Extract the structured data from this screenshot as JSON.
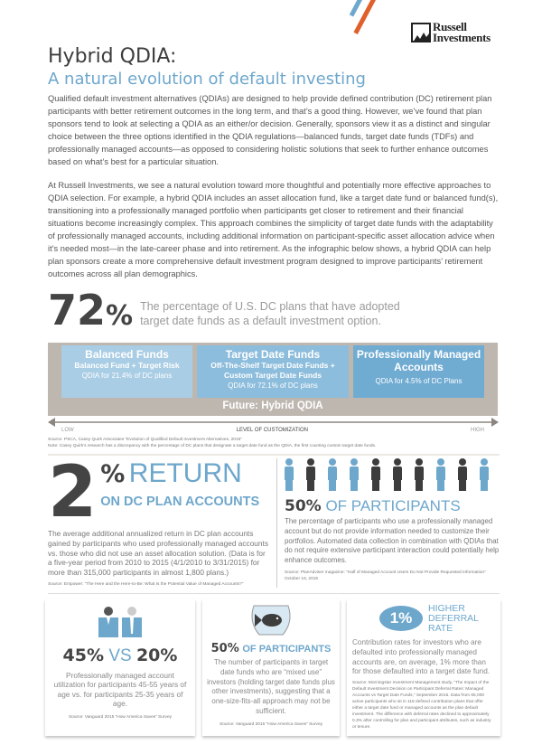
{
  "brand": {
    "name_line1": "Russell",
    "name_line2": "Investments",
    "colors": {
      "blue": "#6ea7cc",
      "orange": "#e0602b",
      "dark": "#3d3d3d",
      "band": "#bdb7b0"
    }
  },
  "header": {
    "title": "Hybrid QDIA:",
    "subtitle": "A natural evolution of default investing"
  },
  "intro": {
    "p1": "Qualified default investment alternatives (QDIAs) are designed to help provide defined contribution (DC) retirement plan participants with better retirement outcomes in the long term, and that’s a good thing. However, we’ve found that plan sponsors tend to look at selecting a QDIA as an either/or decision. Generally, sponsors view it as a distinct and singular choice between the three options identified in the QDIA regulations—balanced funds, target date funds (TDFs) and professionally managed accounts—as opposed to considering holistic solutions that seek to further enhance outcomes based on what’s best for a particular situation.",
    "p2": "At Russell Investments, we see a natural evolution toward more thoughtful and potentially more effective approaches to QDIA selection. For example, a hybrid QDIA includes an asset allocation fund, like a target date fund or balanced fund(s), transitioning into a professionally managed portfolio when participants get closer to retirement and their financial situations become increasingly complex. This approach combines the simplicity of target date funds with the adaptability of professionally managed accounts, including additional information on participant-specific asset allocation advice when it’s needed most—in the late-career phase and into retirement. As the infographic below shows, a hybrid QDIA can help plan sponsors create a more comprehensive default investment program designed to improve participants’ retirement outcomes across all plan demographics."
  },
  "stat72": {
    "number": "72",
    "pct": "%",
    "text": "The percentage of U.S. DC plans that have adopted target date funds as a default investment option."
  },
  "spectrum": {
    "boxes": [
      {
        "title": "Balanced Funds",
        "sub": "Balanced Fund + Target Risk",
        "qdia": "QDIA for 21.4% of DC plans",
        "color": "#a9cde4"
      },
      {
        "title": "Target Date Funds",
        "sub": "Off-The-Shelf Target Date Funds + Custom Target Date Funds",
        "qdia": "QDIA for 72.1% of DC plans",
        "color": "#8dbddc"
      },
      {
        "title": "Professionally Managed Accounts",
        "sub": "",
        "qdia": "QDIA for 4.5% of DC Plans",
        "color": "#70abd2"
      }
    ],
    "future": "Future: Hybrid QDIA",
    "low": "LOW",
    "axis": "LEVEL OF CUSTOMIZATION",
    "high": "HIGH",
    "source": "Source: PSCA, Casey Quirk Associates “Evolution of Qualified Default Investment Alternatives, 2015”",
    "note": "Note: Casey Quirk's research has a discrepancy with the percentage of DC plans that designate a target date fund as the QDIA, the first counting custom target date funds."
  },
  "return": {
    "number": "2",
    "pct": "%",
    "headline": "RETURN",
    "sub": "ON DC PLAN ACCOUNTS",
    "text": "The average additional annualized return in DC plan accounts gained by participants who used professionally managed accounts vs. those who did not use an asset allocation solution. (Data is for a five-year period from 2010 to 2015 (4/1/2010 to 3/31/2015) for more than 315,000 participants in almost 1,800 plans.)",
    "source": "Source: Empower: “The Here and the Here-to-Be: What Is the Potential Value of Managed Accounts?”"
  },
  "participants": {
    "figures": [
      "light",
      "dark",
      "light",
      "light",
      "dark",
      "dark",
      "dark",
      "light",
      "dark",
      "light"
    ],
    "pct": "50%",
    "headline": "OF PARTICIPANTS",
    "text": "The percentage of participants who use a professionally managed account but do not provide information needed to customize their portfolios. Automated data collection in combination with QDIAs that do not require extensive participant interaction could potentially help enhance outcomes.",
    "source": "Source: PlanAdviser magazine: “Half of Managed Account Users Do Not Provide Requested Information” October 16, 2015"
  },
  "age": {
    "a": "45%",
    "vs": "VS",
    "b": "20%",
    "text": "Professionally managed account utilization for participants 45-55 years of age vs. for participants 25-35 years of age.",
    "source": "Source: Vanguard 2015 “How America Saves” Survey"
  },
  "mixed": {
    "pct": "50%",
    "headline": "OF PARTICIPANTS",
    "text": "The number of participants in target date funds who are “mixed use” investors (holding target date funds plus other investments), suggesting that a one-size-fits-all approach may not be sufficient.",
    "source": "Source: Vanguard 2015 “How America Saves” Survey"
  },
  "deferral": {
    "badge": "1%",
    "headline1": "HIGHER",
    "headline2": "DEFERRAL",
    "headline3": "RATE",
    "text": "Contribution rates for investors who are defaulted into professionally managed accounts are, on average, 1% more than for those defaulted into a target date fund.",
    "source": "Source: Morningstar Investment Management study, “The Impact of the Default Investment Decision on Participant Deferral Rates: Managed Accounts vs Target Date Funds,” September 2015. Data from 65,000 active participants who sit in 118 defined contribution plans that offer either a target date fund or managed accounts as the plan default investment. The difference with deferral rates declined to approximately 0.3% after controlling for plan and participant attributes, such as industry or tenure."
  }
}
